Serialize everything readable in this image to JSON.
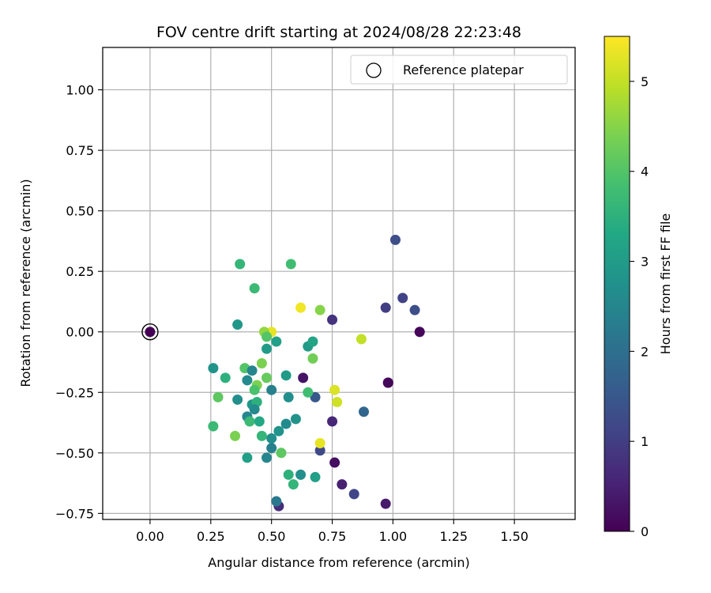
{
  "chart_data": {
    "type": "scatter",
    "title": "FOV centre drift starting at 2024/08/28 22:23:48",
    "xlabel": "Angular distance from reference (arcmin)",
    "ylabel": "Rotation from reference (arcmin)",
    "xlim": [
      -0.195,
      1.75
    ],
    "ylim": [
      -0.775,
      1.175
    ],
    "xticks": [
      "0.00",
      "0.25",
      "0.50",
      "0.75",
      "1.00",
      "1.25",
      "1.50"
    ],
    "yticks": [
      "−0.75",
      "−0.50",
      "−0.25",
      "0.00",
      "0.25",
      "0.50",
      "0.75",
      "1.00"
    ],
    "grid": true,
    "legend": {
      "placement": "top-right",
      "entries": [
        "Reference platepar"
      ]
    },
    "reference_point": {
      "x": 0.0,
      "y": 0.0,
      "marker": "open-circle"
    },
    "colorbar": {
      "label": "Hours from first FF file",
      "range": [
        0,
        5.5
      ],
      "ticks": [
        "0",
        "1",
        "2",
        "3",
        "4",
        "5"
      ],
      "colormap": "viridis"
    },
    "points": [
      {
        "x": 0.0,
        "y": 0.0,
        "h": 0.0
      },
      {
        "x": 1.01,
        "y": 0.38,
        "h": 1.3
      },
      {
        "x": 0.97,
        "y": 0.1,
        "h": 1.0
      },
      {
        "x": 1.04,
        "y": 0.14,
        "h": 1.1
      },
      {
        "x": 1.09,
        "y": 0.09,
        "h": 1.3
      },
      {
        "x": 1.11,
        "y": 0.0,
        "h": 0.1
      },
      {
        "x": 0.75,
        "y": 0.05,
        "h": 0.8
      },
      {
        "x": 0.63,
        "y": -0.19,
        "h": 0.3
      },
      {
        "x": 0.98,
        "y": -0.21,
        "h": 0.05
      },
      {
        "x": 0.98,
        "y": -0.21,
        "h": 0.1
      },
      {
        "x": 0.68,
        "y": -0.27,
        "h": 1.5
      },
      {
        "x": 0.88,
        "y": -0.33,
        "h": 1.8
      },
      {
        "x": 0.75,
        "y": -0.37,
        "h": 0.6
      },
      {
        "x": 0.7,
        "y": -0.49,
        "h": 1.2
      },
      {
        "x": 0.76,
        "y": -0.54,
        "h": 0.2
      },
      {
        "x": 0.79,
        "y": -0.63,
        "h": 0.5
      },
      {
        "x": 0.84,
        "y": -0.67,
        "h": 1.1
      },
      {
        "x": 0.97,
        "y": -0.71,
        "h": 0.4
      },
      {
        "x": 0.53,
        "y": -0.72,
        "h": 0.7
      },
      {
        "x": 0.52,
        "y": -0.7,
        "h": 2.2
      },
      {
        "x": 0.62,
        "y": 0.1,
        "h": 5.4
      },
      {
        "x": 0.5,
        "y": 0.0,
        "h": 5.3
      },
      {
        "x": 0.87,
        "y": -0.03,
        "h": 5.0
      },
      {
        "x": 0.76,
        "y": -0.24,
        "h": 5.2
      },
      {
        "x": 0.77,
        "y": -0.29,
        "h": 5.1
      },
      {
        "x": 0.7,
        "y": -0.46,
        "h": 5.3
      },
      {
        "x": 0.7,
        "y": 0.09,
        "h": 4.5
      },
      {
        "x": 0.67,
        "y": -0.11,
        "h": 4.3
      },
      {
        "x": 0.47,
        "y": 0.0,
        "h": 4.6
      },
      {
        "x": 0.48,
        "y": -0.02,
        "h": 4.0
      },
      {
        "x": 0.46,
        "y": -0.13,
        "h": 4.4
      },
      {
        "x": 0.37,
        "y": 0.28,
        "h": 3.6
      },
      {
        "x": 0.58,
        "y": 0.28,
        "h": 3.8
      },
      {
        "x": 0.43,
        "y": 0.18,
        "h": 3.7
      },
      {
        "x": 0.36,
        "y": 0.03,
        "h": 2.9
      },
      {
        "x": 0.48,
        "y": -0.07,
        "h": 3.0
      },
      {
        "x": 0.52,
        "y": -0.04,
        "h": 3.1
      },
      {
        "x": 0.65,
        "y": -0.06,
        "h": 3.0
      },
      {
        "x": 0.67,
        "y": -0.04,
        "h": 3.2
      },
      {
        "x": 0.26,
        "y": -0.15,
        "h": 2.8
      },
      {
        "x": 0.39,
        "y": -0.15,
        "h": 4.0
      },
      {
        "x": 0.42,
        "y": -0.16,
        "h": 2.5
      },
      {
        "x": 0.31,
        "y": -0.19,
        "h": 3.5
      },
      {
        "x": 0.4,
        "y": -0.2,
        "h": 2.6
      },
      {
        "x": 0.48,
        "y": -0.19,
        "h": 4.2
      },
      {
        "x": 0.44,
        "y": -0.22,
        "h": 4.4
      },
      {
        "x": 0.43,
        "y": -0.24,
        "h": 3.9
      },
      {
        "x": 0.5,
        "y": -0.24,
        "h": 2.4
      },
      {
        "x": 0.56,
        "y": -0.18,
        "h": 3.0
      },
      {
        "x": 0.57,
        "y": -0.27,
        "h": 2.7
      },
      {
        "x": 0.65,
        "y": -0.25,
        "h": 3.8
      },
      {
        "x": 0.28,
        "y": -0.27,
        "h": 4.1
      },
      {
        "x": 0.36,
        "y": -0.28,
        "h": 2.7
      },
      {
        "x": 0.42,
        "y": -0.3,
        "h": 2.9
      },
      {
        "x": 0.44,
        "y": -0.29,
        "h": 3.5
      },
      {
        "x": 0.43,
        "y": -0.32,
        "h": 2.6
      },
      {
        "x": 0.4,
        "y": -0.35,
        "h": 2.5
      },
      {
        "x": 0.41,
        "y": -0.37,
        "h": 3.7
      },
      {
        "x": 0.45,
        "y": -0.37,
        "h": 3.3
      },
      {
        "x": 0.26,
        "y": -0.39,
        "h": 3.7
      },
      {
        "x": 0.35,
        "y": -0.43,
        "h": 4.4
      },
      {
        "x": 0.46,
        "y": -0.43,
        "h": 3.6
      },
      {
        "x": 0.5,
        "y": -0.44,
        "h": 2.7
      },
      {
        "x": 0.53,
        "y": -0.41,
        "h": 2.8
      },
      {
        "x": 0.56,
        "y": -0.38,
        "h": 2.6
      },
      {
        "x": 0.6,
        "y": -0.36,
        "h": 2.8
      },
      {
        "x": 0.5,
        "y": -0.48,
        "h": 2.4
      },
      {
        "x": 0.54,
        "y": -0.5,
        "h": 4.1
      },
      {
        "x": 0.4,
        "y": -0.52,
        "h": 3.1
      },
      {
        "x": 0.48,
        "y": -0.52,
        "h": 2.5
      },
      {
        "x": 0.57,
        "y": -0.59,
        "h": 3.5
      },
      {
        "x": 0.62,
        "y": -0.59,
        "h": 2.7
      },
      {
        "x": 0.59,
        "y": -0.63,
        "h": 3.6
      },
      {
        "x": 0.68,
        "y": -0.6,
        "h": 3.1
      }
    ]
  }
}
